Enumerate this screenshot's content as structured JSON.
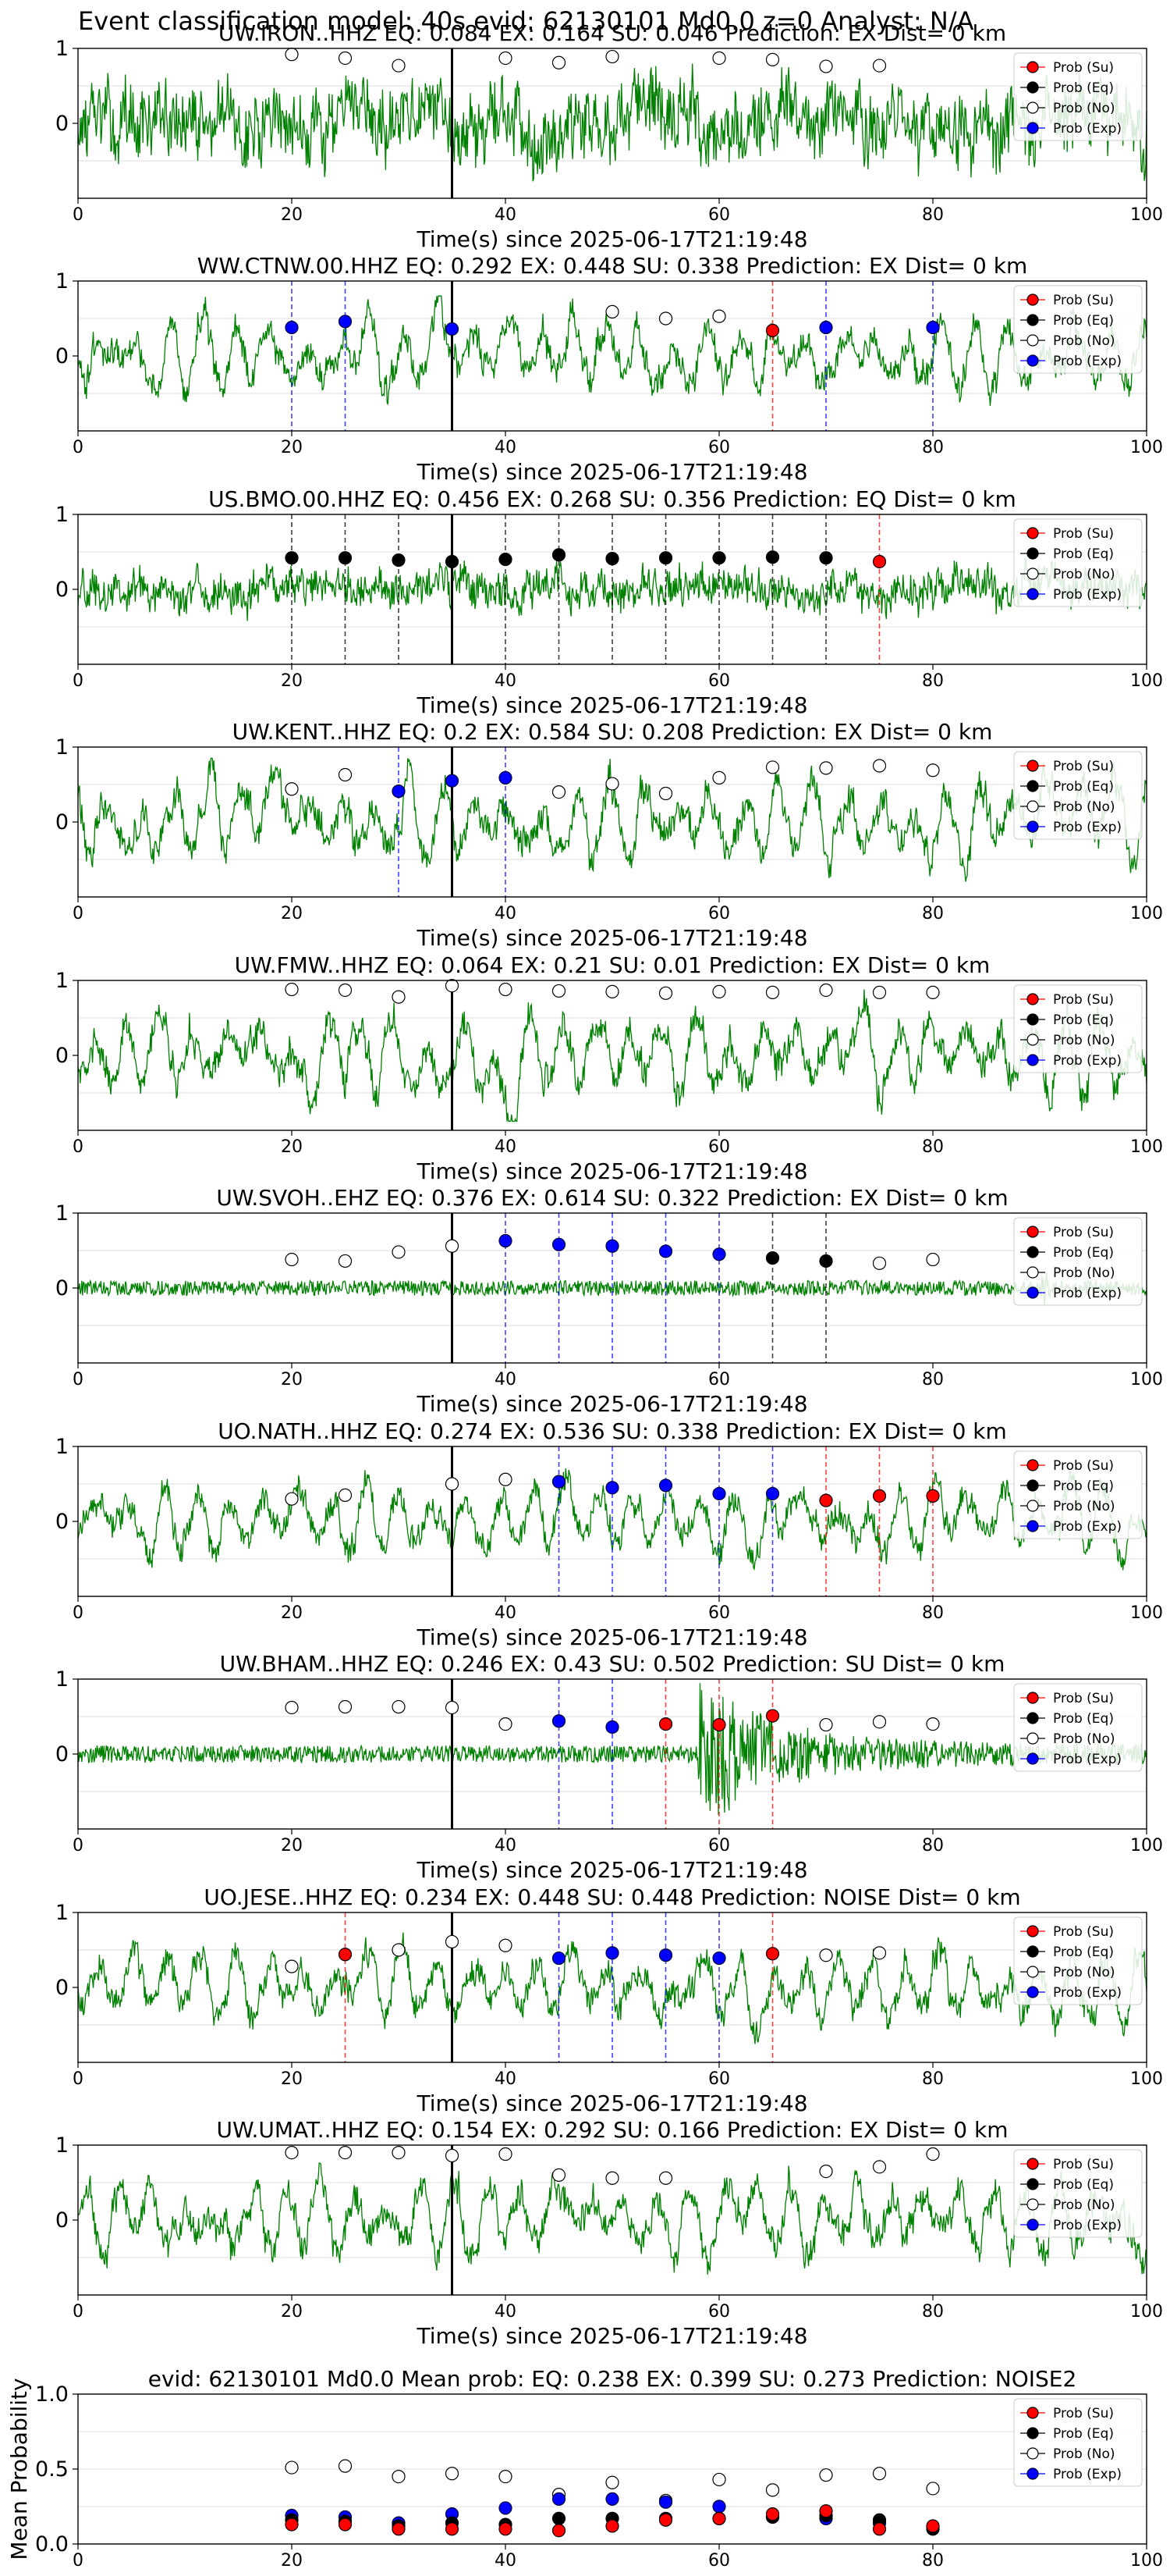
{
  "figure_title": "Event classification model: 40s evid: 62130101 Md0.0 z=0 Analyst: N/A",
  "legend_labels": [
    "Prob (Su)",
    "Prob (Eq)",
    "Prob (No)",
    "Prob (Exp)"
  ],
  "colors": {
    "su": "#ff0000",
    "eq": "#000000",
    "no": "#ffffff",
    "exp": "#0000ff",
    "waveform": "#008000",
    "pick_line": "#000000",
    "grid": "#dddddd"
  },
  "chart_data": [
    {
      "type": "line",
      "title": "UW.IRON..HHZ   EQ: 0.084  EX: 0.164  SU: 0.046   Prediction: EX    Dist= 0 km",
      "xlabel": "Time(s) since 2025-06-17T21:19:48",
      "ylabel": "",
      "xlim": [
        0,
        100
      ],
      "ylim": [
        -1,
        1
      ],
      "xticks": [
        0,
        20,
        40,
        60,
        80,
        100
      ],
      "yticks": [
        1,
        0
      ],
      "waveform": {
        "character": "noisy",
        "amplitude": 0.82,
        "onset": 0
      },
      "pick_time": 35,
      "legend_position": "top-right",
      "points": [
        {
          "x": 20,
          "y": 0.92,
          "cls": "no"
        },
        {
          "x": 25,
          "y": 0.87,
          "cls": "no"
        },
        {
          "x": 30,
          "y": 0.77,
          "cls": "no"
        },
        {
          "x": 40,
          "y": 0.87,
          "cls": "no"
        },
        {
          "x": 45,
          "y": 0.81,
          "cls": "no"
        },
        {
          "x": 50,
          "y": 0.89,
          "cls": "no"
        },
        {
          "x": 60,
          "y": 0.87,
          "cls": "no"
        },
        {
          "x": 65,
          "y": 0.85,
          "cls": "no"
        },
        {
          "x": 70,
          "y": 0.76,
          "cls": "no"
        },
        {
          "x": 75,
          "y": 0.77,
          "cls": "no"
        }
      ]
    },
    {
      "type": "line",
      "title": "WW.CTNW.00.HHZ   EQ: 0.292  EX: 0.448  SU: 0.338   Prediction: EX    Dist= 0 km",
      "xlabel": "Time(s) since 2025-06-17T21:19:48",
      "ylabel": "",
      "xlim": [
        0,
        100
      ],
      "ylim": [
        -1,
        1
      ],
      "xticks": [
        0,
        20,
        40,
        60,
        80,
        100
      ],
      "yticks": [
        1,
        0
      ],
      "waveform": {
        "character": "oscillatory",
        "amplitude": 0.8,
        "onset": 0
      },
      "pick_time": 35,
      "legend_position": "top-right",
      "points": [
        {
          "x": 20,
          "y": 0.38,
          "cls": "exp"
        },
        {
          "x": 25,
          "y": 0.46,
          "cls": "exp"
        },
        {
          "x": 35,
          "y": 0.36,
          "cls": "exp"
        },
        {
          "x": 50,
          "y": 0.59,
          "cls": "no"
        },
        {
          "x": 55,
          "y": 0.5,
          "cls": "no"
        },
        {
          "x": 60,
          "y": 0.53,
          "cls": "no"
        },
        {
          "x": 65,
          "y": 0.34,
          "cls": "su"
        },
        {
          "x": 70,
          "y": 0.38,
          "cls": "exp"
        },
        {
          "x": 80,
          "y": 0.38,
          "cls": "exp"
        }
      ]
    },
    {
      "type": "line",
      "title": "US.BMO.00.HHZ   EQ: 0.456  EX: 0.268  SU: 0.356   Prediction: EQ    Dist= 0 km",
      "xlabel": "Time(s) since 2025-06-17T21:19:48",
      "ylabel": "",
      "xlim": [
        0,
        100
      ],
      "ylim": [
        -1,
        1
      ],
      "xticks": [
        0,
        20,
        40,
        60,
        80,
        100
      ],
      "yticks": [
        1,
        0
      ],
      "waveform": {
        "character": "noisy",
        "amplitude": 0.42,
        "onset": 0
      },
      "pick_time": 35,
      "legend_position": "top-right",
      "points": [
        {
          "x": 20,
          "y": 0.42,
          "cls": "eq"
        },
        {
          "x": 25,
          "y": 0.42,
          "cls": "eq"
        },
        {
          "x": 30,
          "y": 0.39,
          "cls": "eq"
        },
        {
          "x": 35,
          "y": 0.37,
          "cls": "eq"
        },
        {
          "x": 40,
          "y": 0.4,
          "cls": "eq"
        },
        {
          "x": 45,
          "y": 0.46,
          "cls": "eq"
        },
        {
          "x": 50,
          "y": 0.41,
          "cls": "eq"
        },
        {
          "x": 55,
          "y": 0.42,
          "cls": "eq"
        },
        {
          "x": 60,
          "y": 0.42,
          "cls": "eq"
        },
        {
          "x": 65,
          "y": 0.43,
          "cls": "eq"
        },
        {
          "x": 70,
          "y": 0.42,
          "cls": "eq"
        },
        {
          "x": 75,
          "y": 0.37,
          "cls": "su"
        }
      ]
    },
    {
      "type": "line",
      "title": "UW.KENT..HHZ   EQ: 0.2  EX: 0.584  SU: 0.208   Prediction: EX    Dist= 0 km",
      "xlabel": "Time(s) since 2025-06-17T21:19:48",
      "ylabel": "",
      "xlim": [
        0,
        100
      ],
      "ylim": [
        -1,
        1
      ],
      "xticks": [
        0,
        20,
        40,
        60,
        80,
        100
      ],
      "yticks": [
        1,
        0
      ],
      "waveform": {
        "character": "oscillatory",
        "amplitude": 0.85,
        "onset": 0
      },
      "pick_time": 35,
      "legend_position": "top-right",
      "points": [
        {
          "x": 20,
          "y": 0.44,
          "cls": "no"
        },
        {
          "x": 25,
          "y": 0.63,
          "cls": "no"
        },
        {
          "x": 30,
          "y": 0.41,
          "cls": "exp"
        },
        {
          "x": 35,
          "y": 0.55,
          "cls": "exp"
        },
        {
          "x": 40,
          "y": 0.59,
          "cls": "exp"
        },
        {
          "x": 45,
          "y": 0.4,
          "cls": "no"
        },
        {
          "x": 50,
          "y": 0.51,
          "cls": "no"
        },
        {
          "x": 55,
          "y": 0.38,
          "cls": "no"
        },
        {
          "x": 60,
          "y": 0.59,
          "cls": "no"
        },
        {
          "x": 65,
          "y": 0.73,
          "cls": "no"
        },
        {
          "x": 70,
          "y": 0.72,
          "cls": "no"
        },
        {
          "x": 75,
          "y": 0.75,
          "cls": "no"
        },
        {
          "x": 80,
          "y": 0.69,
          "cls": "no"
        }
      ]
    },
    {
      "type": "line",
      "title": "UW.FMW..HHZ   EQ: 0.064  EX: 0.21  SU: 0.01   Prediction: EX    Dist= 0 km",
      "xlabel": "Time(s) since 2025-06-17T21:19:48",
      "ylabel": "",
      "xlim": [
        0,
        100
      ],
      "ylim": [
        -1,
        1
      ],
      "xticks": [
        0,
        20,
        40,
        60,
        80,
        100
      ],
      "yticks": [
        1,
        0
      ],
      "waveform": {
        "character": "oscillatory",
        "amplitude": 0.88,
        "onset": 0
      },
      "pick_time": 35,
      "legend_position": "top-right",
      "points": [
        {
          "x": 20,
          "y": 0.88,
          "cls": "no"
        },
        {
          "x": 25,
          "y": 0.87,
          "cls": "no"
        },
        {
          "x": 30,
          "y": 0.78,
          "cls": "no"
        },
        {
          "x": 35,
          "y": 0.93,
          "cls": "no"
        },
        {
          "x": 40,
          "y": 0.88,
          "cls": "no"
        },
        {
          "x": 45,
          "y": 0.86,
          "cls": "no"
        },
        {
          "x": 50,
          "y": 0.85,
          "cls": "no"
        },
        {
          "x": 55,
          "y": 0.83,
          "cls": "no"
        },
        {
          "x": 60,
          "y": 0.85,
          "cls": "no"
        },
        {
          "x": 65,
          "y": 0.84,
          "cls": "no"
        },
        {
          "x": 70,
          "y": 0.87,
          "cls": "no"
        },
        {
          "x": 75,
          "y": 0.84,
          "cls": "no"
        },
        {
          "x": 80,
          "y": 0.84,
          "cls": "no"
        }
      ]
    },
    {
      "type": "line",
      "title": "UW.SVOH..EHZ   EQ: 0.376  EX: 0.614  SU: 0.322   Prediction: EX    Dist= 0 km",
      "xlabel": "Time(s) since 2025-06-17T21:19:48",
      "ylabel": "",
      "xlim": [
        0,
        100
      ],
      "ylim": [
        -1,
        1
      ],
      "xticks": [
        0,
        20,
        40,
        60,
        80,
        100
      ],
      "yticks": [
        1,
        0
      ],
      "waveform": {
        "character": "quiet",
        "amplitude": 0.22,
        "onset": 0
      },
      "pick_time": 35,
      "legend_position": "top-right",
      "points": [
        {
          "x": 20,
          "y": 0.38,
          "cls": "no"
        },
        {
          "x": 25,
          "y": 0.36,
          "cls": "no"
        },
        {
          "x": 30,
          "y": 0.48,
          "cls": "no"
        },
        {
          "x": 35,
          "y": 0.56,
          "cls": "no"
        },
        {
          "x": 40,
          "y": 0.63,
          "cls": "exp"
        },
        {
          "x": 45,
          "y": 0.58,
          "cls": "exp"
        },
        {
          "x": 50,
          "y": 0.56,
          "cls": "exp"
        },
        {
          "x": 55,
          "y": 0.49,
          "cls": "exp"
        },
        {
          "x": 60,
          "y": 0.45,
          "cls": "exp"
        },
        {
          "x": 65,
          "y": 0.4,
          "cls": "eq"
        },
        {
          "x": 70,
          "y": 0.36,
          "cls": "eq"
        },
        {
          "x": 75,
          "y": 0.33,
          "cls": "no"
        },
        {
          "x": 80,
          "y": 0.38,
          "cls": "no"
        }
      ]
    },
    {
      "type": "line",
      "title": "UO.NATH..HHZ   EQ: 0.274  EX: 0.536  SU: 0.338   Prediction: EX    Dist= 0 km",
      "xlabel": "Time(s) since 2025-06-17T21:19:48",
      "ylabel": "",
      "xlim": [
        0,
        100
      ],
      "ylim": [
        -1,
        1
      ],
      "xticks": [
        0,
        20,
        40,
        60,
        80,
        100
      ],
      "yticks": [
        1,
        0
      ],
      "waveform": {
        "character": "oscillatory",
        "amplitude": 0.75,
        "onset": 0
      },
      "pick_time": 35,
      "legend_position": "top-right",
      "points": [
        {
          "x": 20,
          "y": 0.3,
          "cls": "no"
        },
        {
          "x": 25,
          "y": 0.35,
          "cls": "no"
        },
        {
          "x": 35,
          "y": 0.5,
          "cls": "no"
        },
        {
          "x": 40,
          "y": 0.56,
          "cls": "no"
        },
        {
          "x": 45,
          "y": 0.53,
          "cls": "exp"
        },
        {
          "x": 50,
          "y": 0.45,
          "cls": "exp"
        },
        {
          "x": 55,
          "y": 0.48,
          "cls": "exp"
        },
        {
          "x": 60,
          "y": 0.37,
          "cls": "exp"
        },
        {
          "x": 65,
          "y": 0.37,
          "cls": "exp"
        },
        {
          "x": 70,
          "y": 0.28,
          "cls": "su"
        },
        {
          "x": 75,
          "y": 0.34,
          "cls": "su"
        },
        {
          "x": 80,
          "y": 0.34,
          "cls": "su"
        }
      ]
    },
    {
      "type": "line",
      "title": "UW.BHAM..HHZ   EQ: 0.246  EX: 0.43  SU: 0.502   Prediction: SU    Dist= 0 km",
      "xlabel": "Time(s) since 2025-06-17T21:19:48",
      "ylabel": "",
      "xlim": [
        0,
        100
      ],
      "ylim": [
        -1,
        1
      ],
      "xticks": [
        0,
        20,
        40,
        60,
        80,
        100
      ],
      "yticks": [
        1,
        0
      ],
      "waveform": {
        "character": "event",
        "amplitude": 0.95,
        "onset": 58
      },
      "pick_time": 35,
      "legend_position": "top-right",
      "points": [
        {
          "x": 20,
          "y": 0.62,
          "cls": "no"
        },
        {
          "x": 25,
          "y": 0.63,
          "cls": "no"
        },
        {
          "x": 30,
          "y": 0.63,
          "cls": "no"
        },
        {
          "x": 35,
          "y": 0.62,
          "cls": "no"
        },
        {
          "x": 40,
          "y": 0.4,
          "cls": "no"
        },
        {
          "x": 45,
          "y": 0.44,
          "cls": "exp"
        },
        {
          "x": 50,
          "y": 0.36,
          "cls": "exp"
        },
        {
          "x": 55,
          "y": 0.4,
          "cls": "su"
        },
        {
          "x": 60,
          "y": 0.39,
          "cls": "su"
        },
        {
          "x": 65,
          "y": 0.51,
          "cls": "su"
        },
        {
          "x": 70,
          "y": 0.39,
          "cls": "no"
        },
        {
          "x": 75,
          "y": 0.43,
          "cls": "no"
        },
        {
          "x": 80,
          "y": 0.4,
          "cls": "no"
        }
      ]
    },
    {
      "type": "line",
      "title": "UO.JESE..HHZ   EQ: 0.234  EX: 0.448  SU: 0.448   Prediction: NOISE    Dist= 0 km",
      "xlabel": "Time(s) since 2025-06-17T21:19:48",
      "ylabel": "",
      "xlim": [
        0,
        100
      ],
      "ylim": [
        -1,
        1
      ],
      "xticks": [
        0,
        20,
        40,
        60,
        80,
        100
      ],
      "yticks": [
        1,
        0
      ],
      "waveform": {
        "character": "oscillatory",
        "amplitude": 0.78,
        "onset": 0
      },
      "pick_time": 35,
      "legend_position": "top-right",
      "points": [
        {
          "x": 20,
          "y": 0.28,
          "cls": "no"
        },
        {
          "x": 25,
          "y": 0.44,
          "cls": "su"
        },
        {
          "x": 30,
          "y": 0.5,
          "cls": "no"
        },
        {
          "x": 35,
          "y": 0.61,
          "cls": "no"
        },
        {
          "x": 40,
          "y": 0.56,
          "cls": "no"
        },
        {
          "x": 45,
          "y": 0.39,
          "cls": "exp"
        },
        {
          "x": 50,
          "y": 0.46,
          "cls": "exp"
        },
        {
          "x": 55,
          "y": 0.43,
          "cls": "exp"
        },
        {
          "x": 60,
          "y": 0.39,
          "cls": "exp"
        },
        {
          "x": 65,
          "y": 0.45,
          "cls": "su"
        },
        {
          "x": 70,
          "y": 0.43,
          "cls": "no"
        },
        {
          "x": 75,
          "y": 0.46,
          "cls": "no"
        }
      ]
    },
    {
      "type": "line",
      "title": "UW.UMAT..HHZ   EQ: 0.154  EX: 0.292  SU: 0.166   Prediction: EX    Dist= 0 km",
      "xlabel": "Time(s) since 2025-06-17T21:19:48",
      "ylabel": "",
      "xlim": [
        0,
        100
      ],
      "ylim": [
        -1,
        1
      ],
      "xticks": [
        0,
        20,
        40,
        60,
        80,
        100
      ],
      "yticks": [
        1,
        0
      ],
      "waveform": {
        "character": "oscillatory",
        "amplitude": 0.85,
        "onset": 0
      },
      "pick_time": 35,
      "legend_position": "top-right",
      "points": [
        {
          "x": 20,
          "y": 0.9,
          "cls": "no"
        },
        {
          "x": 25,
          "y": 0.9,
          "cls": "no"
        },
        {
          "x": 30,
          "y": 0.9,
          "cls": "no"
        },
        {
          "x": 35,
          "y": 0.86,
          "cls": "no"
        },
        {
          "x": 40,
          "y": 0.88,
          "cls": "no"
        },
        {
          "x": 45,
          "y": 0.6,
          "cls": "no"
        },
        {
          "x": 50,
          "y": 0.56,
          "cls": "no"
        },
        {
          "x": 55,
          "y": 0.56,
          "cls": "no"
        },
        {
          "x": 70,
          "y": 0.65,
          "cls": "no"
        },
        {
          "x": 75,
          "y": 0.71,
          "cls": "no"
        },
        {
          "x": 80,
          "y": 0.88,
          "cls": "no"
        }
      ]
    },
    {
      "type": "scatter",
      "title": "evid: 62130101  Md0.0   Mean prob:   EQ: 0.238  EX: 0.399  SU: 0.273   Prediction: NOISE2",
      "xlabel": "",
      "ylabel": "Mean Probability",
      "xlim": [
        0,
        100
      ],
      "ylim": [
        0,
        1
      ],
      "xticks": [
        0,
        20,
        40,
        60,
        80,
        100
      ],
      "yticks": [
        0.0,
        0.5,
        1.0
      ],
      "yticklabels": [
        "0.0",
        "0.5",
        "1.0"
      ],
      "legend_position": "top-right",
      "x": [
        20,
        25,
        30,
        35,
        40,
        45,
        50,
        55,
        60,
        65,
        70,
        75,
        80
      ],
      "series": [
        {
          "name": "Prob (No)",
          "cls": "no",
          "values": [
            0.51,
            0.52,
            0.45,
            0.47,
            0.45,
            0.33,
            0.41,
            0.29,
            0.43,
            0.36,
            0.46,
            0.47,
            0.37
          ]
        },
        {
          "name": "Prob (Exp)",
          "cls": "exp",
          "values": [
            0.19,
            0.18,
            0.14,
            0.2,
            0.24,
            0.3,
            0.3,
            0.28,
            0.25,
            0.18,
            0.17,
            0.14,
            0.11
          ]
        },
        {
          "name": "Prob (Eq)",
          "cls": "eq",
          "values": [
            0.16,
            0.15,
            0.12,
            0.14,
            0.13,
            0.17,
            0.17,
            0.17,
            0.17,
            0.18,
            0.19,
            0.16,
            0.1
          ]
        },
        {
          "name": "Prob (Su)",
          "cls": "su",
          "values": [
            0.13,
            0.13,
            0.1,
            0.1,
            0.1,
            0.09,
            0.12,
            0.16,
            0.17,
            0.2,
            0.22,
            0.1,
            0.12
          ]
        }
      ]
    }
  ]
}
